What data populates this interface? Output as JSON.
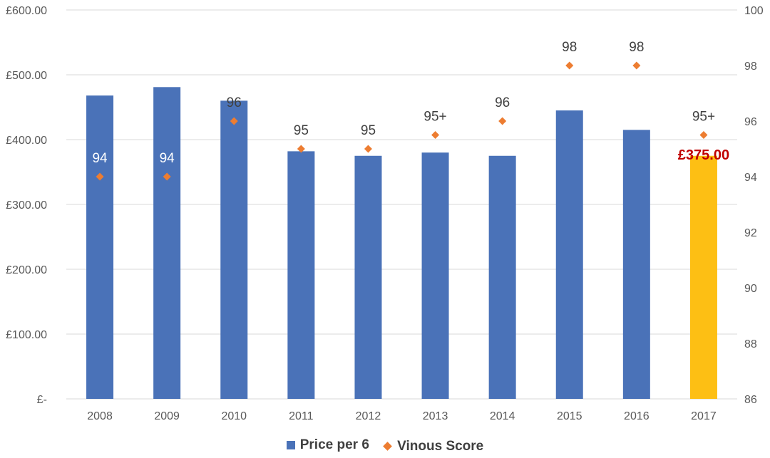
{
  "chart_data": {
    "type": "bar",
    "categories": [
      "2008",
      "2009",
      "2010",
      "2011",
      "2012",
      "2013",
      "2014",
      "2015",
      "2016",
      "2017"
    ],
    "series": [
      {
        "name": "Price per 6",
        "axis": "left",
        "type": "bar",
        "values": [
          468,
          481,
          460,
          382,
          375,
          380,
          375,
          445,
          415,
          375
        ],
        "color": "#4a72b8",
        "highlight": {
          "index": 9,
          "color": "#fdbf14",
          "label": "£375.00",
          "label_color": "#c00000"
        }
      },
      {
        "name": "Vinous Score",
        "axis": "right",
        "type": "scatter",
        "marker": "diamond",
        "values": [
          94,
          94,
          96,
          95,
          95,
          95.5,
          96,
          98,
          98,
          95.5
        ],
        "labels": [
          "94",
          "94",
          "96",
          "95",
          "95",
          "95+",
          "96",
          "98",
          "98",
          "95+"
        ],
        "color": "#ed7d31"
      }
    ],
    "y_left": {
      "lim": [
        0,
        600
      ],
      "ticks": [
        0,
        100,
        200,
        300,
        400,
        500,
        600
      ],
      "tick_labels": [
        "£-",
        "£100.00",
        "£200.00",
        "£300.00",
        "£400.00",
        "£500.00",
        "£600.00"
      ]
    },
    "y_right": {
      "lim": [
        86,
        100
      ],
      "ticks": [
        86,
        88,
        90,
        92,
        94,
        96,
        98,
        100
      ],
      "tick_labels": [
        "86",
        "88",
        "90",
        "92",
        "94",
        "96",
        "98",
        "100"
      ]
    },
    "grid": true,
    "legend": {
      "position": "bottom"
    }
  }
}
